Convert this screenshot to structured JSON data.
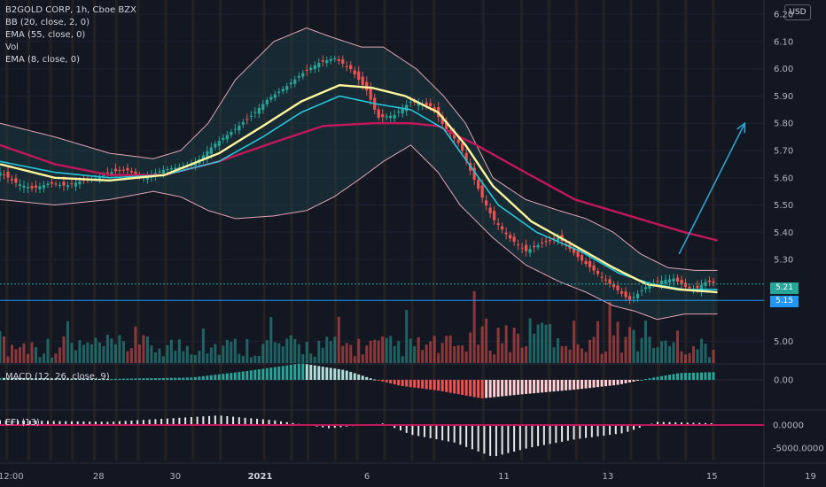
{
  "legend": {
    "symbol": "B2GOLD CORP, 1h, Cboe BZX",
    "bb": "BB (20, close, 2, 0)",
    "ema55": "EMA (55, close, 0)",
    "vol": "Vol",
    "ema8": "EMA (8, close, 0)"
  },
  "macd_label": "MACD (12, 26, close, 9)",
  "efi_label": "EFI (13)",
  "currency": "USD",
  "price_tags": {
    "last": "5.21",
    "line": "5.15"
  },
  "colors": {
    "bg": "#131722",
    "up": "#26a69a",
    "down": "#ef5350",
    "bb": "#e0a5b5",
    "ema55": "#c2185b",
    "ema8": "#fff59d",
    "ema20": "#26c6da",
    "hline": "#2196f3",
    "arrow": "#2aa3cf"
  },
  "chart_data": [
    {
      "type": "candlestick",
      "title": "B2GOLD CORP, 1h, Cboe BZX",
      "ylim": [
        4.92,
        6.22
      ],
      "y_ticks": [
        "6.20",
        "6.10",
        "6.00",
        "5.90",
        "5.80",
        "5.70",
        "5.60",
        "5.50",
        "5.40",
        "5.30",
        "5.00"
      ],
      "x_ticks": [
        "12:00",
        "28",
        "30",
        "2021",
        "6",
        "11",
        "13",
        "15",
        "19"
      ],
      "horizontal_line": 5.15,
      "last_price": 5.21,
      "close_path": [
        [
          0,
          5.62
        ],
        [
          6,
          5.58
        ],
        [
          12,
          5.56
        ],
        [
          18,
          5.58
        ],
        [
          24,
          5.57
        ],
        [
          30,
          5.59
        ],
        [
          36,
          5.6
        ],
        [
          40,
          5.62
        ],
        [
          46,
          5.63
        ],
        [
          52,
          5.6
        ],
        [
          60,
          5.63
        ],
        [
          66,
          5.64
        ],
        [
          72,
          5.66
        ],
        [
          78,
          5.72
        ],
        [
          86,
          5.78
        ],
        [
          92,
          5.83
        ],
        [
          98,
          5.89
        ],
        [
          104,
          5.93
        ],
        [
          110,
          5.98
        ],
        [
          116,
          6.02
        ],
        [
          122,
          6.04
        ],
        [
          128,
          6.0
        ],
        [
          134,
          5.92
        ],
        [
          138,
          5.82
        ],
        [
          144,
          5.83
        ],
        [
          150,
          5.88
        ],
        [
          158,
          5.86
        ],
        [
          162,
          5.79
        ],
        [
          168,
          5.72
        ],
        [
          172,
          5.62
        ],
        [
          176,
          5.53
        ],
        [
          180,
          5.45
        ],
        [
          186,
          5.38
        ],
        [
          192,
          5.33
        ],
        [
          198,
          5.36
        ],
        [
          204,
          5.38
        ],
        [
          208,
          5.34
        ],
        [
          212,
          5.3
        ],
        [
          218,
          5.25
        ],
        [
          224,
          5.2
        ],
        [
          230,
          5.15
        ],
        [
          236,
          5.2
        ],
        [
          240,
          5.22
        ],
        [
          246,
          5.23
        ],
        [
          250,
          5.2
        ],
        [
          254,
          5.19
        ],
        [
          258,
          5.22
        ],
        [
          262,
          5.21
        ]
      ],
      "ema8_path": [
        [
          0,
          5.65
        ],
        [
          20,
          5.6
        ],
        [
          40,
          5.59
        ],
        [
          60,
          5.61
        ],
        [
          80,
          5.69
        ],
        [
          96,
          5.79
        ],
        [
          110,
          5.88
        ],
        [
          124,
          5.94
        ],
        [
          136,
          5.93
        ],
        [
          148,
          5.9
        ],
        [
          160,
          5.84
        ],
        [
          170,
          5.72
        ],
        [
          180,
          5.57
        ],
        [
          194,
          5.44
        ],
        [
          210,
          5.35
        ],
        [
          224,
          5.27
        ],
        [
          236,
          5.21
        ],
        [
          248,
          5.19
        ],
        [
          262,
          5.18
        ]
      ],
      "ema20_path": [
        [
          0,
          5.66
        ],
        [
          20,
          5.62
        ],
        [
          40,
          5.6
        ],
        [
          60,
          5.61
        ],
        [
          80,
          5.66
        ],
        [
          96,
          5.75
        ],
        [
          110,
          5.84
        ],
        [
          124,
          5.9
        ],
        [
          138,
          5.87
        ],
        [
          150,
          5.85
        ],
        [
          162,
          5.78
        ],
        [
          172,
          5.64
        ],
        [
          182,
          5.5
        ],
        [
          196,
          5.4
        ],
        [
          212,
          5.33
        ],
        [
          226,
          5.25
        ],
        [
          238,
          5.21
        ],
        [
          250,
          5.19
        ],
        [
          262,
          5.19
        ]
      ],
      "ema55_path": [
        [
          0,
          5.72
        ],
        [
          20,
          5.65
        ],
        [
          40,
          5.61
        ],
        [
          60,
          5.61
        ],
        [
          80,
          5.66
        ],
        [
          100,
          5.73
        ],
        [
          118,
          5.79
        ],
        [
          136,
          5.8
        ],
        [
          150,
          5.8
        ],
        [
          160,
          5.79
        ],
        [
          174,
          5.72
        ],
        [
          190,
          5.63
        ],
        [
          210,
          5.52
        ],
        [
          230,
          5.46
        ],
        [
          250,
          5.4
        ],
        [
          262,
          5.37
        ]
      ],
      "bb_upper_path": [
        [
          0,
          5.8
        ],
        [
          20,
          5.75
        ],
        [
          40,
          5.69
        ],
        [
          56,
          5.67
        ],
        [
          66,
          5.7
        ],
        [
          76,
          5.8
        ],
        [
          86,
          5.96
        ],
        [
          100,
          6.1
        ],
        [
          112,
          6.15
        ],
        [
          120,
          6.12
        ],
        [
          132,
          6.08
        ],
        [
          140,
          6.08
        ],
        [
          152,
          6.0
        ],
        [
          162,
          5.9
        ],
        [
          170,
          5.8
        ],
        [
          180,
          5.6
        ],
        [
          192,
          5.52
        ],
        [
          204,
          5.48
        ],
        [
          214,
          5.45
        ],
        [
          224,
          5.4
        ],
        [
          234,
          5.32
        ],
        [
          244,
          5.27
        ],
        [
          254,
          5.26
        ],
        [
          262,
          5.26
        ]
      ],
      "bb_lower_path": [
        [
          0,
          5.52
        ],
        [
          20,
          5.5
        ],
        [
          40,
          5.52
        ],
        [
          56,
          5.55
        ],
        [
          66,
          5.53
        ],
        [
          76,
          5.48
        ],
        [
          86,
          5.45
        ],
        [
          100,
          5.46
        ],
        [
          112,
          5.48
        ],
        [
          122,
          5.53
        ],
        [
          132,
          5.6
        ],
        [
          140,
          5.66
        ],
        [
          150,
          5.72
        ],
        [
          160,
          5.62
        ],
        [
          168,
          5.5
        ],
        [
          180,
          5.38
        ],
        [
          192,
          5.28
        ],
        [
          204,
          5.22
        ],
        [
          214,
          5.18
        ],
        [
          224,
          5.13
        ],
        [
          232,
          5.11
        ],
        [
          240,
          5.08
        ],
        [
          250,
          5.1
        ],
        [
          262,
          5.1
        ]
      ],
      "arrow_from": [
        248,
        5.32
      ],
      "arrow_to": [
        272,
        5.8
      ]
    },
    {
      "type": "bar",
      "title": "MACD (12, 26, close, 9)",
      "y_ticks": [
        "0.00"
      ],
      "profile": [
        [
          0,
          0.1
        ],
        [
          40,
          0.05
        ],
        [
          70,
          0.12
        ],
        [
          90,
          0.45
        ],
        [
          110,
          0.85
        ],
        [
          126,
          0.5
        ],
        [
          136,
          0.05
        ],
        [
          146,
          -0.3
        ],
        [
          160,
          -0.55
        ],
        [
          176,
          -0.95
        ],
        [
          190,
          -0.75
        ],
        [
          210,
          -0.5
        ],
        [
          226,
          -0.25
        ],
        [
          236,
          0.05
        ],
        [
          248,
          0.35
        ],
        [
          262,
          0.4
        ]
      ]
    },
    {
      "type": "bar",
      "title": "EFI (13)",
      "y_ticks": [
        "0.0000",
        "-5000.0000"
      ],
      "profile": [
        [
          0,
          0.15
        ],
        [
          40,
          0.1
        ],
        [
          80,
          0.3
        ],
        [
          100,
          0.15
        ],
        [
          120,
          -0.1
        ],
        [
          140,
          0.05
        ],
        [
          150,
          -0.3
        ],
        [
          166,
          -0.55
        ],
        [
          180,
          -1.0
        ],
        [
          194,
          -0.7
        ],
        [
          210,
          -0.45
        ],
        [
          228,
          -0.25
        ],
        [
          240,
          0.1
        ],
        [
          262,
          0.05
        ]
      ]
    }
  ]
}
